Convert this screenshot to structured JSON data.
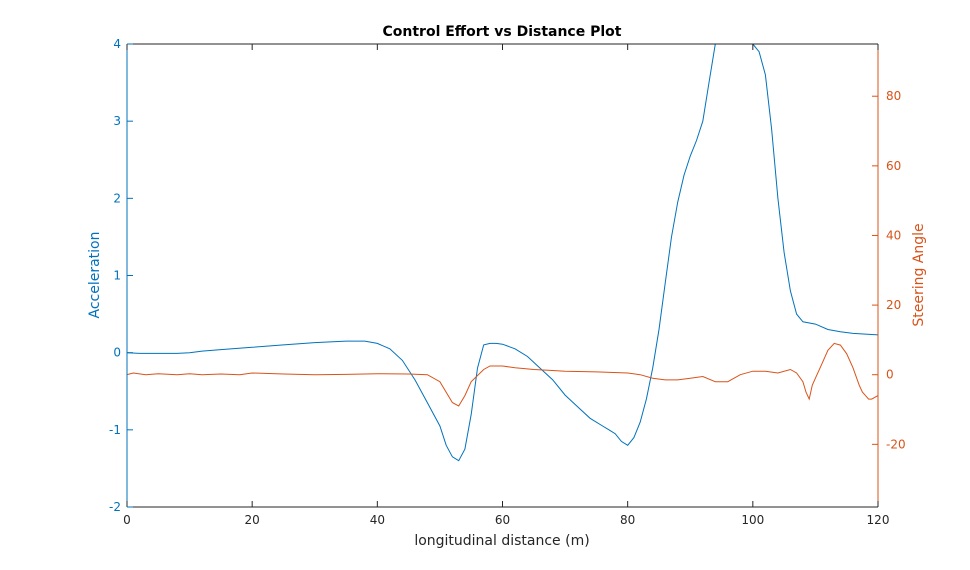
{
  "chart_data": {
    "type": "line",
    "title": "Control Effort vs Distance Plot",
    "xlabel": "longitudinal distance (m)",
    "ylabel_left": "Acceleration",
    "ylabel_right": "Steering Angle",
    "xlim": [
      0,
      120
    ],
    "ylim_left": [
      -2,
      4
    ],
    "ylim_right": [
      -38,
      95
    ],
    "xticks": [
      0,
      20,
      40,
      60,
      80,
      100,
      120
    ],
    "yticks_left": [
      -2,
      -1,
      0,
      1,
      2,
      3,
      4
    ],
    "yticks_right": [
      -20,
      0,
      20,
      40,
      60,
      80
    ],
    "grid": false,
    "colors": {
      "acceleration": "#0072BD",
      "steering": "#D95319",
      "axis": "#262626"
    },
    "series": [
      {
        "axis": "left",
        "x": [
          0,
          2,
          5,
          8,
          10,
          12,
          15,
          20,
          25,
          30,
          35,
          38,
          40,
          42,
          44,
          46,
          48,
          50,
          51,
          52,
          53,
          54,
          55,
          56,
          57,
          58,
          59,
          60,
          62,
          64,
          66,
          68,
          70,
          72,
          74,
          76,
          77,
          78,
          79,
          80,
          81,
          82,
          83,
          84,
          85,
          86,
          87,
          88,
          89,
          90,
          91,
          92,
          93,
          94,
          95,
          96,
          97,
          98,
          99,
          100,
          101,
          102,
          103,
          104,
          105,
          106,
          107,
          108,
          110,
          112,
          114,
          116,
          118,
          120
        ],
        "values": [
          0,
          -0.01,
          -0.01,
          -0.01,
          0,
          0.02,
          0.04,
          0.07,
          0.1,
          0.13,
          0.15,
          0.15,
          0.12,
          0.05,
          -0.1,
          -0.35,
          -0.65,
          -0.95,
          -1.2,
          -1.35,
          -1.4,
          -1.25,
          -0.8,
          -0.2,
          0.1,
          0.12,
          0.12,
          0.11,
          0.05,
          -0.05,
          -0.2,
          -0.35,
          -0.55,
          -0.7,
          -0.85,
          -0.95,
          -1.0,
          -1.05,
          -1.15,
          -1.2,
          -1.1,
          -0.9,
          -0.6,
          -0.2,
          0.3,
          0.9,
          1.5,
          1.95,
          2.3,
          2.55,
          2.75,
          3.0,
          3.5,
          4.0,
          4.0,
          4.0,
          4.0,
          4.0,
          4.0,
          4.0,
          3.9,
          3.6,
          2.9,
          2.0,
          1.3,
          0.8,
          0.5,
          0.4,
          0.37,
          0.3,
          0.27,
          0.25,
          0.24,
          0.23
        ]
      },
      {
        "axis": "right",
        "x": [
          0,
          1,
          3,
          5,
          8,
          10,
          12,
          15,
          18,
          20,
          25,
          30,
          35,
          40,
          45,
          48,
          50,
          52,
          53,
          54,
          55,
          57,
          58,
          59,
          60,
          62,
          65,
          68,
          70,
          75,
          80,
          82,
          84,
          86,
          88,
          90,
          92,
          94,
          96,
          98,
          100,
          102,
          104,
          106,
          107,
          108,
          108.5,
          109,
          109.5,
          110,
          111,
          112,
          113,
          114,
          115,
          116,
          117,
          117.5,
          118,
          118.5,
          119,
          120
        ],
        "values": [
          0,
          0.5,
          0,
          0.3,
          0,
          0.3,
          0,
          0.2,
          0,
          0.5,
          0.2,
          0,
          0.1,
          0.3,
          0.2,
          0,
          -2,
          -8,
          -9,
          -6,
          -2,
          1.5,
          2.5,
          2.5,
          2.5,
          2,
          1.5,
          1.2,
          1,
          0.8,
          0.5,
          0,
          -1,
          -1.5,
          -1.5,
          -1,
          -0.5,
          -2,
          -2,
          0,
          1,
          1,
          0.5,
          1.5,
          0.5,
          -2,
          -5,
          -7,
          -3,
          -1,
          3,
          7,
          9,
          8.5,
          6,
          2,
          -3,
          -5,
          -6,
          -7,
          -7,
          -6
        ]
      }
    ]
  }
}
